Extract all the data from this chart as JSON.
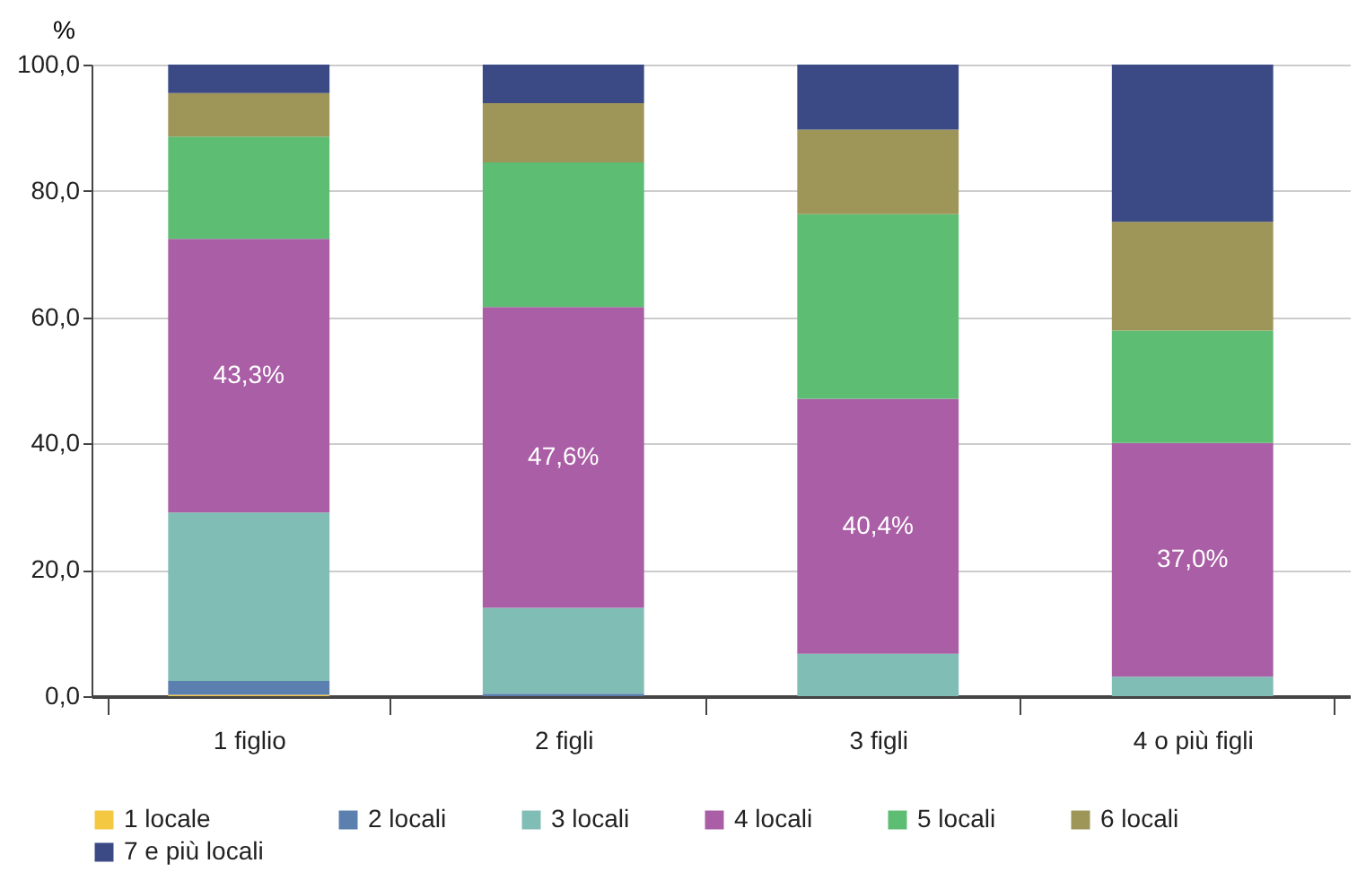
{
  "chart_data": {
    "type": "bar",
    "stacked": true,
    "ylabel": "%",
    "categories": [
      "1 figlio",
      "2 figli",
      "3 figli",
      "4 o più figli"
    ],
    "series": [
      {
        "name": "1 locale",
        "color": "#f5c842",
        "values": [
          0.2,
          0,
          0,
          0
        ]
      },
      {
        "name": "2 locali",
        "color": "#5b7fae",
        "values": [
          2.2,
          0.4,
          0,
          0
        ]
      },
      {
        "name": "3 locali",
        "color": "#80bdb5",
        "values": [
          26.7,
          13.6,
          6.7,
          3.1
        ]
      },
      {
        "name": "4 locali",
        "color": "#a95ea5",
        "values": [
          43.3,
          47.6,
          40.4,
          37.0
        ],
        "value_labels": [
          "43,3%",
          "47,6%",
          "40,4%",
          "37,0%"
        ]
      },
      {
        "name": "5 locali",
        "color": "#5dbd73",
        "values": [
          16.2,
          22.9,
          29.2,
          17.8
        ]
      },
      {
        "name": "6 locali",
        "color": "#9e9558",
        "values": [
          6.9,
          9.4,
          13.4,
          17.2
        ]
      },
      {
        "name": "7 e più locali",
        "color": "#3b4a85",
        "values": [
          4.5,
          6.1,
          10.3,
          24.9
        ]
      }
    ],
    "ylim": [
      0,
      100
    ],
    "yticks": [
      {
        "value": 0,
        "label": "0,0"
      },
      {
        "value": 20,
        "label": "20,0"
      },
      {
        "value": 40,
        "label": "40,0"
      },
      {
        "value": 60,
        "label": "60,0"
      },
      {
        "value": 80,
        "label": "80,0"
      },
      {
        "value": 100,
        "label": "100,0"
      }
    ],
    "grid": "y",
    "legend": "bottom"
  }
}
